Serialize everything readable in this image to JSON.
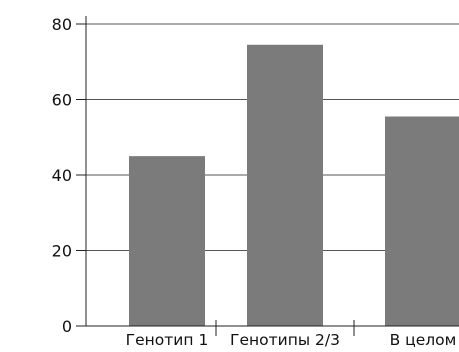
{
  "chart_data": {
    "type": "bar",
    "title": "",
    "xlabel": "",
    "ylabel": "",
    "categories": [
      "Генотип 1",
      "Генотипы 2/3",
      "В целом"
    ],
    "values": [
      45,
      74.5,
      55.5
    ],
    "ylim": [
      0,
      80
    ],
    "yticks": [
      0,
      20,
      40,
      60,
      80
    ],
    "ytick_labels": [
      "0",
      "20",
      "40",
      "60",
      "80"
    ],
    "grid": true,
    "legend": "none",
    "colors": {
      "bar": "#7b7b7b",
      "grid": "#555555",
      "axis": "#222222"
    }
  }
}
